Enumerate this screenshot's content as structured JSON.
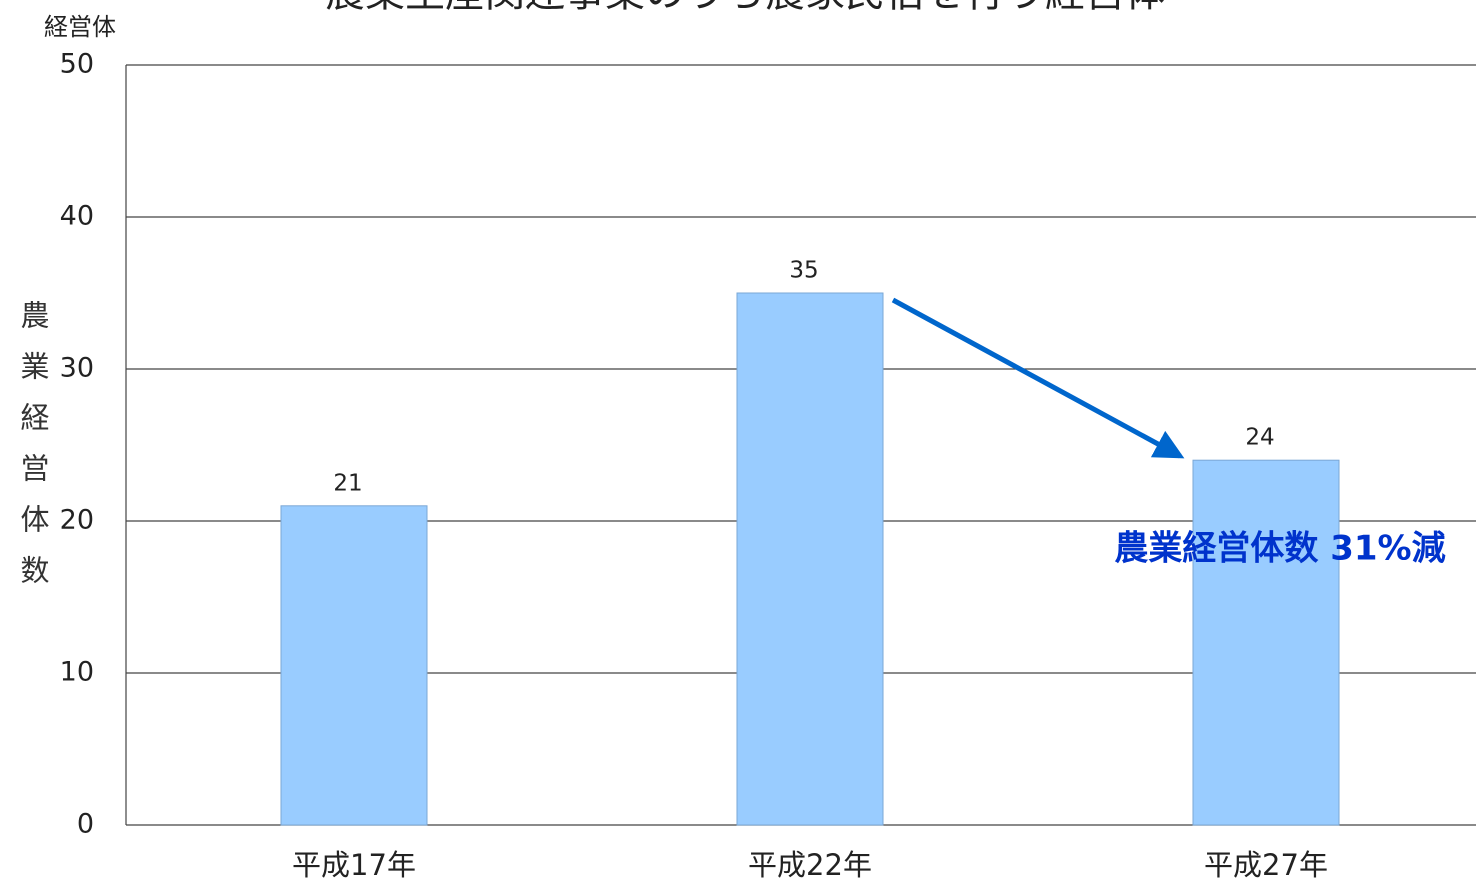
{
  "chart_data": {
    "type": "bar",
    "title": "農業生産関連事業のうち農家民宿を行う経営体",
    "unit_label": "経営体",
    "y_axis_label": "農業経営体数",
    "categories": [
      "平成17年",
      "平成22年",
      "平成27年"
    ],
    "values": [
      21,
      35,
      24
    ],
    "color": "#99ccff",
    "ylim": [
      0,
      50
    ],
    "yticks": [
      0,
      10,
      20,
      30,
      40,
      50
    ],
    "grid": true,
    "annotation": "農業経営体数 31%減"
  }
}
